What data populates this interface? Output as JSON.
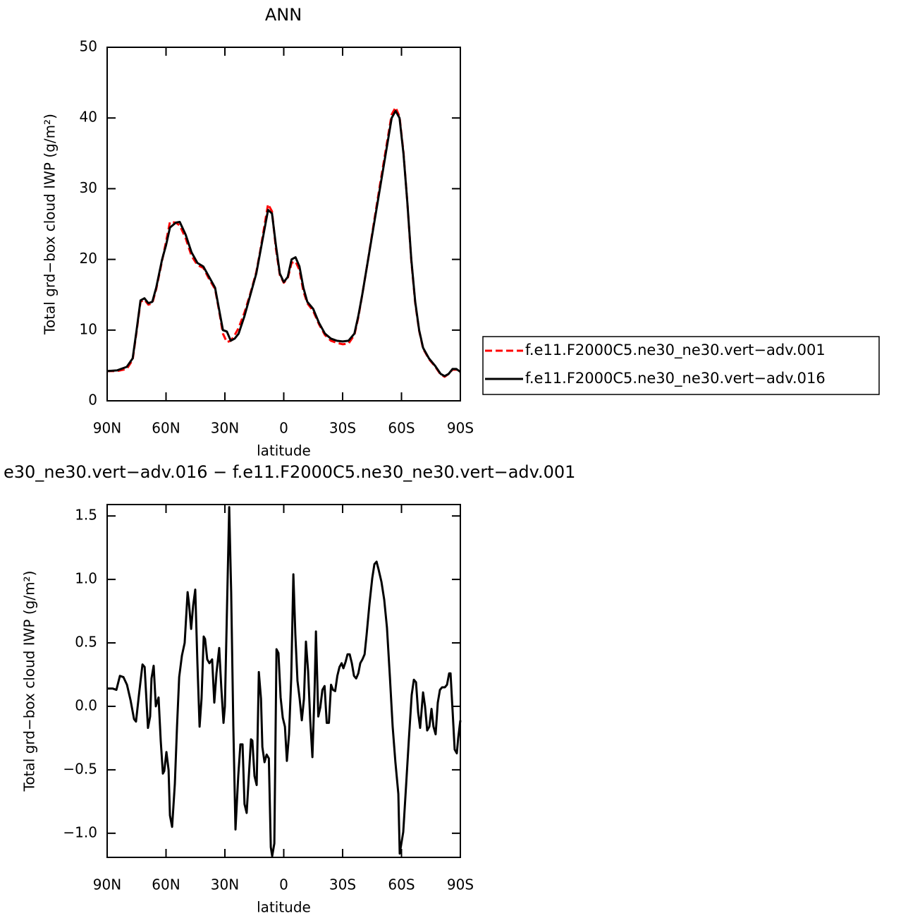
{
  "chart_data": [
    {
      "type": "line",
      "title": "ANN",
      "xlabel": "latitude",
      "ylabel": "Total grd−box cloud IWP (g/m²)",
      "xlim": [
        90,
        -90
      ],
      "xticks": [
        {
          "value": 90,
          "label": "90N"
        },
        {
          "value": 60,
          "label": "60N"
        },
        {
          "value": 30,
          "label": "30N"
        },
        0,
        {
          "value": -30,
          "label": "30S"
        },
        {
          "value": -60,
          "label": "60S"
        },
        {
          "value": -90,
          "label": "90S"
        }
      ],
      "ylim": [
        0,
        50
      ],
      "yticks": [
        0,
        10,
        20,
        30,
        40,
        50
      ],
      "legend": "right",
      "x": [
        90,
        85,
        80,
        77,
        75,
        73,
        71,
        69,
        67,
        65,
        62,
        60,
        58,
        55,
        53,
        50,
        47,
        44,
        41,
        38,
        35,
        33,
        31,
        29,
        27,
        25,
        23,
        20,
        17,
        14,
        12,
        10,
        8,
        6,
        4,
        2,
        0,
        -2,
        -4,
        -6,
        -8,
        -10,
        -12,
        -15,
        -18,
        -21,
        -24,
        -27,
        -30,
        -33,
        -36,
        -38,
        -40,
        -43,
        -46,
        -49,
        -52,
        -55,
        -57,
        -59,
        -61,
        -63,
        -65,
        -67,
        -69,
        -71,
        -74,
        -77,
        -80,
        -82,
        -84,
        -86,
        -88,
        -90
      ],
      "series": [
        {
          "name": "f.e11.F2000C5.ne30_ne30.vert−adv.001",
          "color": "#ff0000",
          "linestyle": "dashed",
          "values": [
            4.2,
            4.2,
            4.5,
            5.8,
            9.8,
            14.0,
            14.3,
            13.6,
            13.8,
            15.8,
            19.8,
            22.5,
            25.3,
            25.2,
            24.8,
            23.0,
            20.5,
            19.2,
            18.8,
            17.2,
            15.8,
            12.8,
            9.5,
            8.3,
            8.5,
            9.3,
            10.3,
            12.5,
            15.2,
            18.2,
            21.2,
            24.5,
            27.8,
            26.8,
            21.5,
            17.8,
            16.7,
            17.3,
            19.5,
            19.7,
            18.5,
            15.5,
            13.8,
            12.7,
            10.8,
            9.3,
            8.5,
            8.2,
            8.0,
            8.1,
            9.3,
            11.8,
            15.0,
            20.0,
            25.3,
            30.5,
            35.5,
            40.5,
            41.5,
            40.2,
            35.2,
            28.0,
            19.8,
            13.8,
            9.9,
            7.4,
            5.9,
            4.9,
            3.7,
            3.4,
            3.8,
            4.4,
            4.4,
            4.0
          ]
        },
        {
          "name": "f.e11.F2000C5.ne30_ne30.vert−adv.016",
          "color": "#000000",
          "linestyle": "solid",
          "values": [
            4.2,
            4.3,
            4.8,
            6,
            10,
            14.2,
            14.5,
            13.8,
            14,
            16,
            20,
            22,
            24.5,
            25.2,
            25.3,
            23.5,
            21,
            19.5,
            19,
            17.5,
            16,
            13,
            10,
            9.8,
            8.5,
            8.8,
            9.5,
            12,
            15,
            18,
            21,
            24,
            27,
            26.5,
            22,
            18,
            16.8,
            17.5,
            20,
            20.3,
            19,
            16,
            14,
            13,
            11,
            9.5,
            8.8,
            8.5,
            8.4,
            8.5,
            9.5,
            12,
            15,
            20,
            25,
            30,
            35,
            40,
            41,
            40,
            35,
            28,
            20,
            14,
            10,
            7.5,
            6,
            5,
            3.8,
            3.5,
            3.8,
            4.5,
            4.5,
            4.1
          ]
        }
      ]
    },
    {
      "type": "line",
      "title": "e30_ne30.vert−adv.016 − f.e11.F2000C5.ne30_ne30.vert−adv.001",
      "xlabel": "latitude",
      "ylabel": "Total grd−box cloud IWP (g/m²)",
      "xlim": [
        90,
        -90
      ],
      "xticks": [
        {
          "value": 90,
          "label": "90N"
        },
        {
          "value": 60,
          "label": "60N"
        },
        {
          "value": 30,
          "label": "30N"
        },
        0,
        {
          "value": -30,
          "label": "30S"
        },
        {
          "value": -60,
          "label": "60S"
        },
        {
          "value": -90,
          "label": "90S"
        }
      ],
      "ylim": [
        -1.19,
        1.59
      ],
      "yticks": [
        {
          "value": -1,
          "label": "−1.0"
        },
        {
          "value": -0.5,
          "label": "−0.5"
        },
        {
          "value": 0,
          "label": "0.0"
        },
        0.5,
        {
          "value": 1,
          "label": "1.0"
        },
        1.5
      ],
      "x": [
        90,
        87.1,
        85.3,
        83.5,
        81.7,
        79.9,
        78.1,
        76.3,
        75.3,
        73.8,
        72.0,
        70.9,
        69.2,
        68.1,
        67.4,
        66.3,
        65.2,
        63.8,
        62.7,
        61.6,
        60.9,
        59.8,
        58.7,
        58.0,
        56.9,
        55.5,
        54.4,
        53.3,
        51.9,
        50.5,
        49.0,
        48.3,
        47.2,
        46.2,
        45.1,
        44.0,
        42.9,
        41.9,
        40.8,
        40.1,
        39.0,
        37.9,
        36.5,
        35.4,
        34.3,
        32.9,
        31.8,
        30.7,
        30.0,
        28.9,
        27.8,
        26.8,
        25.7,
        24.6,
        23.2,
        22.1,
        21.0,
        20.0,
        18.9,
        17.8,
        16.7,
        16.0,
        14.9,
        13.8,
        12.7,
        11.6,
        10.9,
        9.8,
        8.7,
        7.6,
        6.6,
        5.9,
        4.8,
        3.7,
        2.7,
        1.6,
        0.5,
        -0.6,
        -1.6,
        -2.7,
        -3.8,
        -4.9,
        -5.9,
        -7.0,
        -8.1,
        -9.2,
        -10.3,
        -11.3,
        -12.4,
        -13.5,
        -14.6,
        -15.7,
        -16.4,
        -17.6,
        -18.6,
        -19.7,
        -20.8,
        -21.9,
        -23.0,
        -24.1,
        -25.1,
        -26.2,
        -27.3,
        -28.4,
        -29.5,
        -30.4,
        -31.5,
        -32.5,
        -33.6,
        -34.7,
        -35.8,
        -36.9,
        -38.0,
        -39.0,
        -40.1,
        -41.2,
        -42.2,
        -43.7,
        -45.1,
        -46.2,
        -47.3,
        -48.3,
        -49.8,
        -51.2,
        -52.6,
        -54.1,
        -55.5,
        -56.9,
        -58.4,
        -59.1,
        -60.9,
        -62.4,
        -63.8,
        -65.2,
        -66.3,
        -67.4,
        -68.5,
        -69.5,
        -71.0,
        -72.0,
        -73.1,
        -74.2,
        -75.3,
        -76.3,
        -77.4,
        -78.5,
        -79.6,
        -80.7,
        -82.1,
        -83.2,
        -84.3,
        -85.0,
        -86.1,
        -87.1,
        -88.2,
        -88.9,
        -90
      ],
      "series": [
        {
          "color": "#000000",
          "linestyle": "solid",
          "values": [
            0.14,
            0.14,
            0.13,
            0.24,
            0.23,
            0.17,
            0.05,
            -0.1,
            -0.12,
            0.09,
            0.33,
            0.31,
            -0.17,
            -0.08,
            0.22,
            0.32,
            0.0,
            0.07,
            -0.27,
            -0.53,
            -0.51,
            -0.36,
            -0.5,
            -0.86,
            -0.95,
            -0.61,
            -0.16,
            0.23,
            0.4,
            0.5,
            0.9,
            0.81,
            0.61,
            0.79,
            0.92,
            0.34,
            -0.16,
            0.06,
            0.55,
            0.53,
            0.37,
            0.34,
            0.37,
            0.03,
            0.26,
            0.46,
            0.14,
            -0.13,
            0.0,
            0.79,
            1.57,
            0.9,
            -0.16,
            -0.97,
            -0.55,
            -0.3,
            -0.3,
            -0.77,
            -0.84,
            -0.55,
            -0.26,
            -0.27,
            -0.55,
            -0.62,
            0.27,
            0.06,
            -0.32,
            -0.44,
            -0.38,
            -0.41,
            -1.11,
            -1.18,
            -1.08,
            0.45,
            0.42,
            0.07,
            -0.09,
            -0.16,
            -0.43,
            -0.22,
            0.22,
            1.04,
            0.57,
            0.2,
            0.06,
            -0.11,
            0.06,
            0.51,
            0.28,
            -0.11,
            -0.4,
            0.12,
            0.59,
            -0.08,
            -0.01,
            0.13,
            0.16,
            -0.13,
            -0.13,
            0.17,
            0.13,
            0.12,
            0.24,
            0.31,
            0.34,
            0.3,
            0.35,
            0.41,
            0.41,
            0.34,
            0.24,
            0.22,
            0.26,
            0.34,
            0.37,
            0.41,
            0.56,
            0.81,
            1.01,
            1.12,
            1.14,
            1.08,
            0.98,
            0.84,
            0.62,
            0.23,
            -0.16,
            -0.44,
            -0.69,
            -1.16,
            -0.99,
            -0.61,
            -0.25,
            0.09,
            0.21,
            0.19,
            -0.05,
            -0.17,
            0.11,
            0.0,
            -0.19,
            -0.16,
            -0.02,
            -0.16,
            -0.22,
            0.03,
            0.13,
            0.15,
            0.15,
            0.17,
            0.26,
            0.26,
            -0.05,
            -0.34,
            -0.37,
            -0.25,
            -0.11
          ]
        }
      ]
    }
  ]
}
